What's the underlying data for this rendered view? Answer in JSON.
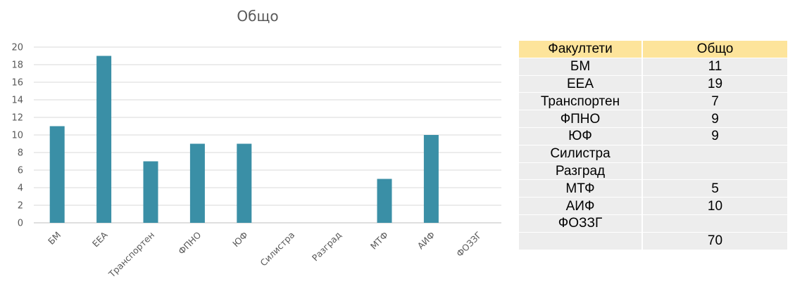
{
  "chart_data": {
    "type": "bar",
    "title": "Общо",
    "categories": [
      "БМ",
      "ЕЕА",
      "Транспортен",
      "ФПНО",
      "ЮФ",
      "Силистра",
      "Разград",
      "МТФ",
      "АИФ",
      "ФОЗЗГ"
    ],
    "values": [
      11,
      19,
      7,
      9,
      9,
      null,
      null,
      5,
      10,
      null
    ],
    "yticks": [
      "0",
      "2",
      "4",
      "6",
      "8",
      "10",
      "12",
      "14",
      "16",
      "18",
      "20"
    ],
    "ylim": [
      0,
      20
    ],
    "grid": true,
    "legend": "none",
    "bar_color": "#3a8fa6"
  },
  "table": {
    "headers": [
      "Факултети",
      "Общо"
    ],
    "rows": [
      [
        "БМ",
        "11"
      ],
      [
        "ЕЕА",
        "19"
      ],
      [
        "Транспортен",
        "7"
      ],
      [
        "ФПНО",
        "9"
      ],
      [
        "ЮФ",
        "9"
      ],
      [
        "Силистра",
        ""
      ],
      [
        "Разград",
        ""
      ],
      [
        "МТФ",
        "5"
      ],
      [
        "АИФ",
        "10"
      ],
      [
        "ФОЗЗГ",
        ""
      ],
      [
        "",
        "70"
      ]
    ],
    "header_color": "#fde49b",
    "cell_color": "#ededed"
  }
}
